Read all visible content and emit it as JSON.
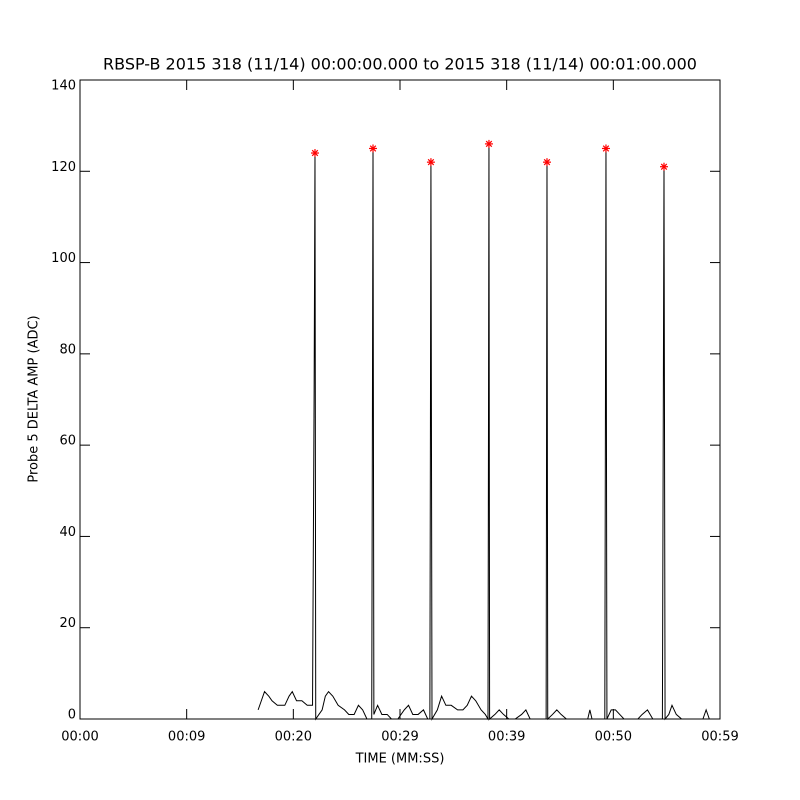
{
  "chart_data": {
    "type": "line",
    "title": "RBSP-B 2015 318 (11/14) 00:00:00.000 to 2015 318 (11/14) 00:01:00.000",
    "xlabel": "TIME (MM:SS)",
    "ylabel": "Probe 5 DELTA AMP (ADC)",
    "xlim": [
      0,
      60
    ],
    "xticks": [
      {
        "value": 0,
        "label": "00:00"
      },
      {
        "value": 10,
        "label": "00:09"
      },
      {
        "value": 20,
        "label": "00:20"
      },
      {
        "value": 30,
        "label": "00:29"
      },
      {
        "value": 40,
        "label": "00:39"
      },
      {
        "value": 50,
        "label": "00:50"
      },
      {
        "value": 60,
        "label": "00:59"
      }
    ],
    "ylim": [
      0,
      140
    ],
    "yticks": [
      0,
      20,
      40,
      60,
      80,
      100,
      120,
      140
    ],
    "series": [
      {
        "color": "#000000",
        "x": [
          16.7,
          17.0,
          17.3,
          17.7,
          18.0,
          18.5,
          19.2,
          19.6,
          19.9,
          20.3,
          20.8,
          21.3,
          21.8,
          21.95,
          22.03,
          22.1,
          22.4,
          22.7,
          23.0,
          23.3,
          23.7,
          24.2,
          24.8,
          25.2,
          25.7,
          26.1,
          26.5,
          26.9,
          27.35,
          27.47,
          27.55,
          27.9,
          28.3,
          28.8,
          29.2,
          29.5,
          29.8,
          30.4,
          30.8,
          31.2,
          31.7,
          32.2,
          32.6,
          32.8,
          32.9,
          33.0,
          33.5,
          33.9,
          34.3,
          34.8,
          35.4,
          35.9,
          36.3,
          36.7,
          37.1,
          37.6,
          38.0,
          38.25,
          38.34,
          38.4,
          38.9,
          39.3,
          39.7,
          40.2,
          40.8,
          41.4,
          41.8,
          42.2,
          42.6,
          43.1,
          43.7,
          43.78,
          43.85,
          44.3,
          44.7,
          45.1,
          45.6,
          46.2,
          47.6,
          47.8,
          48.0,
          48.5,
          49.2,
          49.31,
          49.4,
          49.8,
          50.2,
          50.6,
          51.0,
          51.8,
          52.3,
          52.7,
          53.2,
          53.7,
          54.6,
          54.75,
          54.85,
          55.2,
          55.5,
          55.9,
          56.4,
          57.2,
          58.4,
          58.7,
          59.0
        ],
        "values": [
          2,
          4,
          6,
          5,
          4,
          3,
          3,
          5,
          6,
          4,
          4,
          3,
          3,
          72,
          124,
          0,
          1,
          2,
          5,
          6,
          5,
          3,
          2,
          1,
          1,
          3,
          2,
          0,
          0,
          125,
          1,
          3,
          1,
          1,
          0,
          null,
          0,
          2,
          3,
          1,
          1,
          2,
          0,
          0,
          122,
          0,
          2,
          5,
          3,
          3,
          2,
          2,
          3,
          5,
          4,
          2,
          1,
          0,
          126,
          0,
          1,
          2,
          1,
          0,
          0,
          1,
          2,
          0,
          0,
          0,
          0,
          122,
          0,
          1,
          2,
          1,
          0,
          0,
          0,
          2,
          0,
          0,
          0,
          125,
          0,
          2,
          2,
          1,
          0,
          0,
          0,
          1,
          2,
          0,
          0,
          121,
          0,
          1,
          3,
          1,
          0,
          0,
          0,
          2,
          0
        ]
      },
      {
        "color": "#ff0000",
        "marker": "*",
        "x": [
          22.03,
          27.47,
          32.9,
          38.34,
          43.78,
          49.31,
          54.75
        ],
        "values": [
          124,
          125,
          122,
          126,
          122,
          125,
          121
        ]
      }
    ]
  }
}
